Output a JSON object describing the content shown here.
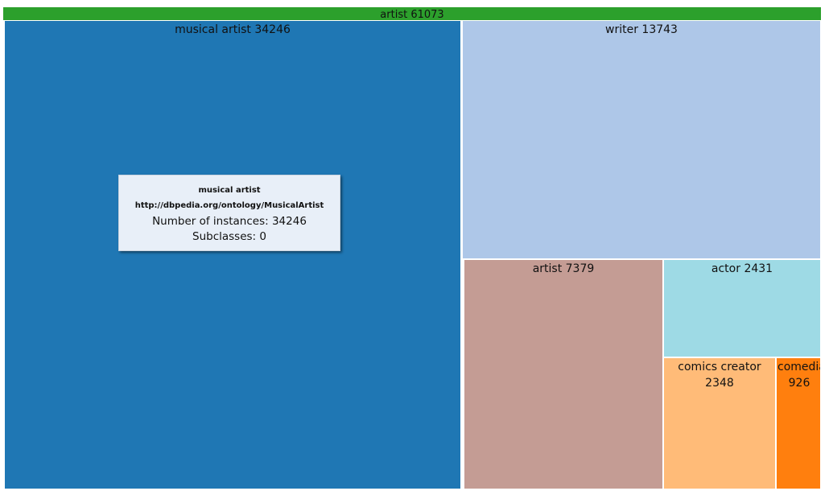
{
  "chart_data": {
    "type": "treemap",
    "root": {
      "name": "artist",
      "value": 61073,
      "color": "#2ca02c",
      "children": [
        {
          "name": "musical artist",
          "value": 34246,
          "color": "#1f77b4"
        },
        {
          "name": "writer",
          "value": 13743,
          "color": "#aec7e8"
        },
        {
          "name": "artist",
          "value": 7379,
          "color": "#c49c94"
        },
        {
          "name": "actor",
          "value": 2431,
          "color": "#9edae5"
        },
        {
          "name": "comics creator",
          "value": 2348,
          "color": "#ffbb78"
        },
        {
          "name": "comedian",
          "value": 926,
          "color": "#ff7f0e"
        }
      ]
    }
  },
  "labels": {
    "root": "artist 61073",
    "musical_artist": "musical artist 34246",
    "writer": "writer 13743",
    "artist": "artist 7379",
    "actor": "actor 2431",
    "comics_creator_name": "comics creator",
    "comics_creator_value": "2348",
    "comedian_name": "comedian",
    "comedian_value": "926"
  },
  "tooltip": {
    "title": "musical artist",
    "uri": "http://dbpedia.org/ontology/MusicalArtist",
    "instances": "Number of instances: 34246",
    "subclasses": "Subclasses: 0"
  }
}
